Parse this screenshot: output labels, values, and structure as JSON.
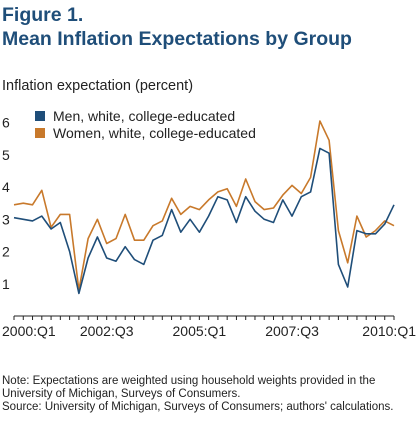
{
  "figure_label": "Figure 1.",
  "figure_title": "Mean Inflation Expectations by Group",
  "notes": [
    "Note: Expectations are weighted using household weights provided in the University of Michigan, Surveys of Consumers.",
    "Source: University of Michigan, Surveys of Consumers; authors' calculations."
  ],
  "chart_data": {
    "type": "line",
    "title": "Mean Inflation Expectations by Group",
    "ylabel": "Inflation expectation (percent)",
    "xlabel": "",
    "ylim": [
      0,
      6.7
    ],
    "yticks": [
      1,
      2,
      3,
      4,
      5,
      6
    ],
    "x": [
      "2000:Q1",
      "2000:Q2",
      "2000:Q3",
      "2000:Q4",
      "2001:Q1",
      "2001:Q2",
      "2001:Q3",
      "2001:Q4",
      "2002:Q1",
      "2002:Q2",
      "2002:Q3",
      "2002:Q4",
      "2003:Q1",
      "2003:Q2",
      "2003:Q3",
      "2003:Q4",
      "2004:Q1",
      "2004:Q2",
      "2004:Q3",
      "2004:Q4",
      "2005:Q1",
      "2005:Q2",
      "2005:Q3",
      "2005:Q4",
      "2006:Q1",
      "2006:Q2",
      "2006:Q3",
      "2006:Q4",
      "2007:Q1",
      "2007:Q2",
      "2007:Q3",
      "2007:Q4",
      "2008:Q1",
      "2008:Q2",
      "2008:Q3",
      "2008:Q4",
      "2009:Q1",
      "2009:Q2",
      "2009:Q3",
      "2009:Q4",
      "2010:Q1",
      "2010:Q2"
    ],
    "xtick_labels": [
      "2000:Q1",
      "2002:Q3",
      "2005:Q1",
      "2007:Q3",
      "2010:Q1"
    ],
    "grid": false,
    "legend_position": "top-left",
    "series": [
      {
        "name": "Men, white, college-educated",
        "color": "#1f4e79",
        "values": [
          3.05,
          3.0,
          2.95,
          3.1,
          2.7,
          2.9,
          2.0,
          0.7,
          1.8,
          2.45,
          1.8,
          1.7,
          2.15,
          1.75,
          1.6,
          2.35,
          2.5,
          3.3,
          2.6,
          3.0,
          2.6,
          3.1,
          3.7,
          3.6,
          2.9,
          3.7,
          3.25,
          3.0,
          2.9,
          3.6,
          3.1,
          3.7,
          3.85,
          5.2,
          5.05,
          1.6,
          0.9,
          2.65,
          2.55,
          2.55,
          2.85,
          3.45
        ]
      },
      {
        "name": "Women, white, college-educated",
        "color": "#c8792b",
        "values": [
          3.45,
          3.5,
          3.45,
          3.9,
          2.75,
          3.15,
          3.15,
          0.8,
          2.4,
          3.0,
          2.25,
          2.4,
          3.15,
          2.35,
          2.35,
          2.8,
          2.95,
          3.65,
          3.15,
          3.4,
          3.3,
          3.6,
          3.85,
          3.95,
          3.4,
          4.25,
          3.55,
          3.3,
          3.35,
          3.75,
          4.05,
          3.8,
          4.3,
          6.05,
          5.45,
          2.65,
          1.65,
          3.1,
          2.45,
          2.65,
          2.95,
          2.8
        ]
      }
    ]
  }
}
